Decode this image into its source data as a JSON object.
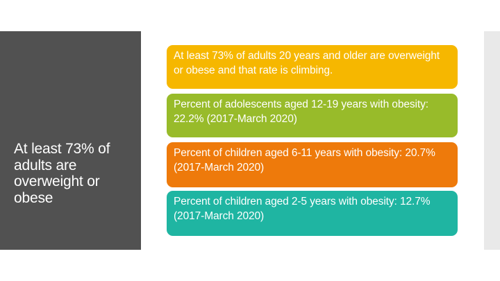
{
  "slide": {
    "title": "At least 73% of adults are overweight or obese",
    "colors": {
      "left_panel": "#515151",
      "box_1": "#f6b700",
      "box_2": "#98bb2a",
      "box_3": "#ee7a0b",
      "box_4": "#1fb5a2",
      "right_strip": "#e9e9e9"
    },
    "boxes": [
      {
        "text": "At least 73% of adults 20 years and older are overweight or obese and that rate is climbing."
      },
      {
        "text": "Percent of adolescents aged 12-19 years with obesity: 22.2% (2017-March 2020)"
      },
      {
        "text": "Percent of children aged 6-11 years with obesity: 20.7% (2017-March 2020)"
      },
      {
        "text": "Percent of children aged 2-5 years with obesity: 12.7% (2017-March 2020)"
      }
    ]
  }
}
